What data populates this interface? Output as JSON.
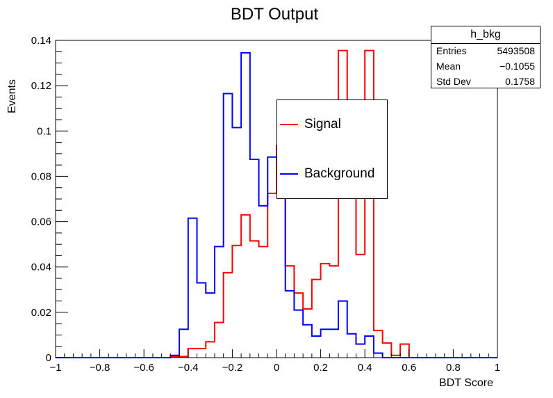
{
  "chart_data": {
    "type": "histogram",
    "title": "BDT Output",
    "xlabel": "BDT Score",
    "ylabel": "Events",
    "xlim": [
      -1,
      1
    ],
    "ylim": [
      0,
      0.14
    ],
    "grid": false,
    "legend_position": "center",
    "x_ticks": [
      -1,
      -0.8,
      -0.6,
      -0.4,
      -0.2,
      0,
      0.2,
      0.4,
      0.6,
      0.8,
      1
    ],
    "x_tick_labels": [
      "−1",
      "−0.8",
      "−0.6",
      "−0.4",
      "−0.2",
      "0",
      "0.2",
      "0.4",
      "0.6",
      "0.8",
      "1"
    ],
    "y_ticks": [
      0,
      0.02,
      0.04,
      0.06,
      0.08,
      0.1,
      0.12,
      0.14
    ],
    "y_tick_labels": [
      "0",
      "0.02",
      "0.04",
      "0.06",
      "0.08",
      "0.1",
      "0.12",
      "0.14"
    ],
    "bin_edges": [
      -1,
      -0.96,
      -0.92,
      -0.88,
      -0.84,
      -0.8,
      -0.76,
      -0.72,
      -0.68,
      -0.64,
      -0.6,
      -0.56,
      -0.52,
      -0.48,
      -0.44,
      -0.4,
      -0.36,
      -0.32,
      -0.28,
      -0.24,
      -0.2,
      -0.16,
      -0.12,
      -0.08,
      -0.04,
      0,
      0.04,
      0.08,
      0.12,
      0.16,
      0.2,
      0.24,
      0.28,
      0.32,
      0.36,
      0.4,
      0.44,
      0.48,
      0.52,
      0.56,
      0.6,
      0.64,
      0.68,
      0.72,
      0.76,
      0.8,
      0.84,
      0.88,
      0.92,
      0.96,
      1
    ],
    "series": [
      {
        "name": "Signal",
        "color": "#ff0000",
        "values": [
          0,
          0,
          0,
          0,
          0,
          0,
          0,
          0,
          0,
          0,
          0,
          0,
          0,
          0.0005,
          0.0005,
          0.004,
          0.004,
          0.007,
          0.0155,
          0.0375,
          0.0495,
          0.063,
          0.0515,
          0.049,
          0.0725,
          0.0935,
          0.0405,
          0.0285,
          0.0215,
          0.0345,
          0.0415,
          0.0405,
          0.1355,
          0.0855,
          0.0455,
          0.1355,
          0.012,
          0.0065,
          0.001,
          0.006,
          0,
          0,
          0,
          0,
          0,
          0,
          0,
          0,
          0,
          0
        ]
      },
      {
        "name": "Background",
        "color": "#0000ff",
        "values": [
          0,
          0,
          0,
          0,
          0,
          0,
          0,
          0,
          0,
          0,
          0,
          0,
          0,
          0.001,
          0.0125,
          0.0615,
          0.033,
          0.0285,
          0.049,
          0.1165,
          0.1015,
          0.1345,
          0.0875,
          0.067,
          0.0885,
          0.0875,
          0.0295,
          0.021,
          0.0145,
          0.0095,
          0.0125,
          0.0125,
          0.025,
          0.0105,
          0.006,
          0.0095,
          0.002,
          0,
          0,
          0,
          0,
          0,
          0,
          0,
          0,
          0,
          0,
          0,
          0,
          0
        ]
      }
    ]
  },
  "stats": {
    "title": "h_bkg",
    "rows": [
      {
        "label": "Entries",
        "value": "5493508"
      },
      {
        "label": "Mean",
        "value": "−0.1055"
      },
      {
        "label": "Std Dev",
        "value": "0.1758"
      }
    ]
  },
  "legend": {
    "signal": "Signal",
    "background": "Background"
  }
}
